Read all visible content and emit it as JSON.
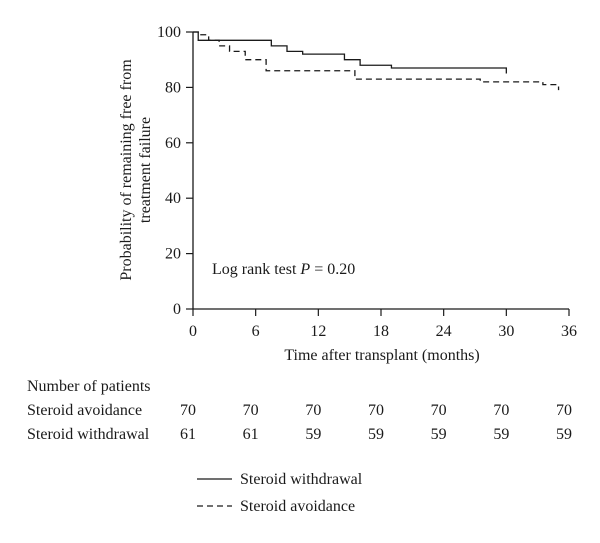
{
  "chart_data": {
    "type": "line",
    "title": "",
    "xlabel": "Time after transplant (months)",
    "ylabel": "Probability of remaining free from treatment failure",
    "ylabel_lines": [
      "Probability of remaining free from",
      "treatment failure"
    ],
    "xlim": [
      0,
      36
    ],
    "ylim": [
      0,
      100
    ],
    "xticks": [
      0,
      6,
      12,
      18,
      24,
      30,
      36
    ],
    "yticks": [
      0,
      20,
      40,
      60,
      80,
      100
    ],
    "grid": false,
    "annotation": {
      "prefix": "Log rank test ",
      "italic": "P",
      "suffix": " = 0.20"
    },
    "series": [
      {
        "name": "Steroid withdrawal",
        "style": "solid",
        "color": "#1a1a1a",
        "x": [
          0,
          0.5,
          3.5,
          7.5,
          9,
          10.5,
          14.5,
          16,
          19,
          30
        ],
        "y": [
          100,
          97,
          97,
          95,
          93,
          92,
          90,
          88,
          87,
          85
        ],
        "end_x": 30
      },
      {
        "name": "Steroid avoidance",
        "style": "dashed",
        "color": "#1a1a1a",
        "x": [
          0,
          0.5,
          1.5,
          2.5,
          3.5,
          5,
          7,
          15.5,
          27.5,
          33.5,
          35
        ],
        "y": [
          100,
          99,
          97,
          95,
          93,
          90,
          86,
          83,
          82,
          81,
          79
        ],
        "end_x": 35
      }
    ],
    "legend": {
      "placement": "bottom",
      "entries": [
        "Steroid withdrawal",
        "Steroid avoidance"
      ]
    },
    "risk_table": {
      "title": "Number of patients",
      "times": [
        0,
        6,
        12,
        18,
        24,
        30,
        36
      ],
      "rows": [
        {
          "label": "Steroid avoidance",
          "values": [
            "70",
            "70",
            "70",
            "70",
            "70",
            "70",
            "70"
          ]
        },
        {
          "label": "Steroid withdrawal",
          "values": [
            "61",
            "61",
            "59",
            "59",
            "59",
            "59",
            "59"
          ]
        }
      ]
    }
  }
}
